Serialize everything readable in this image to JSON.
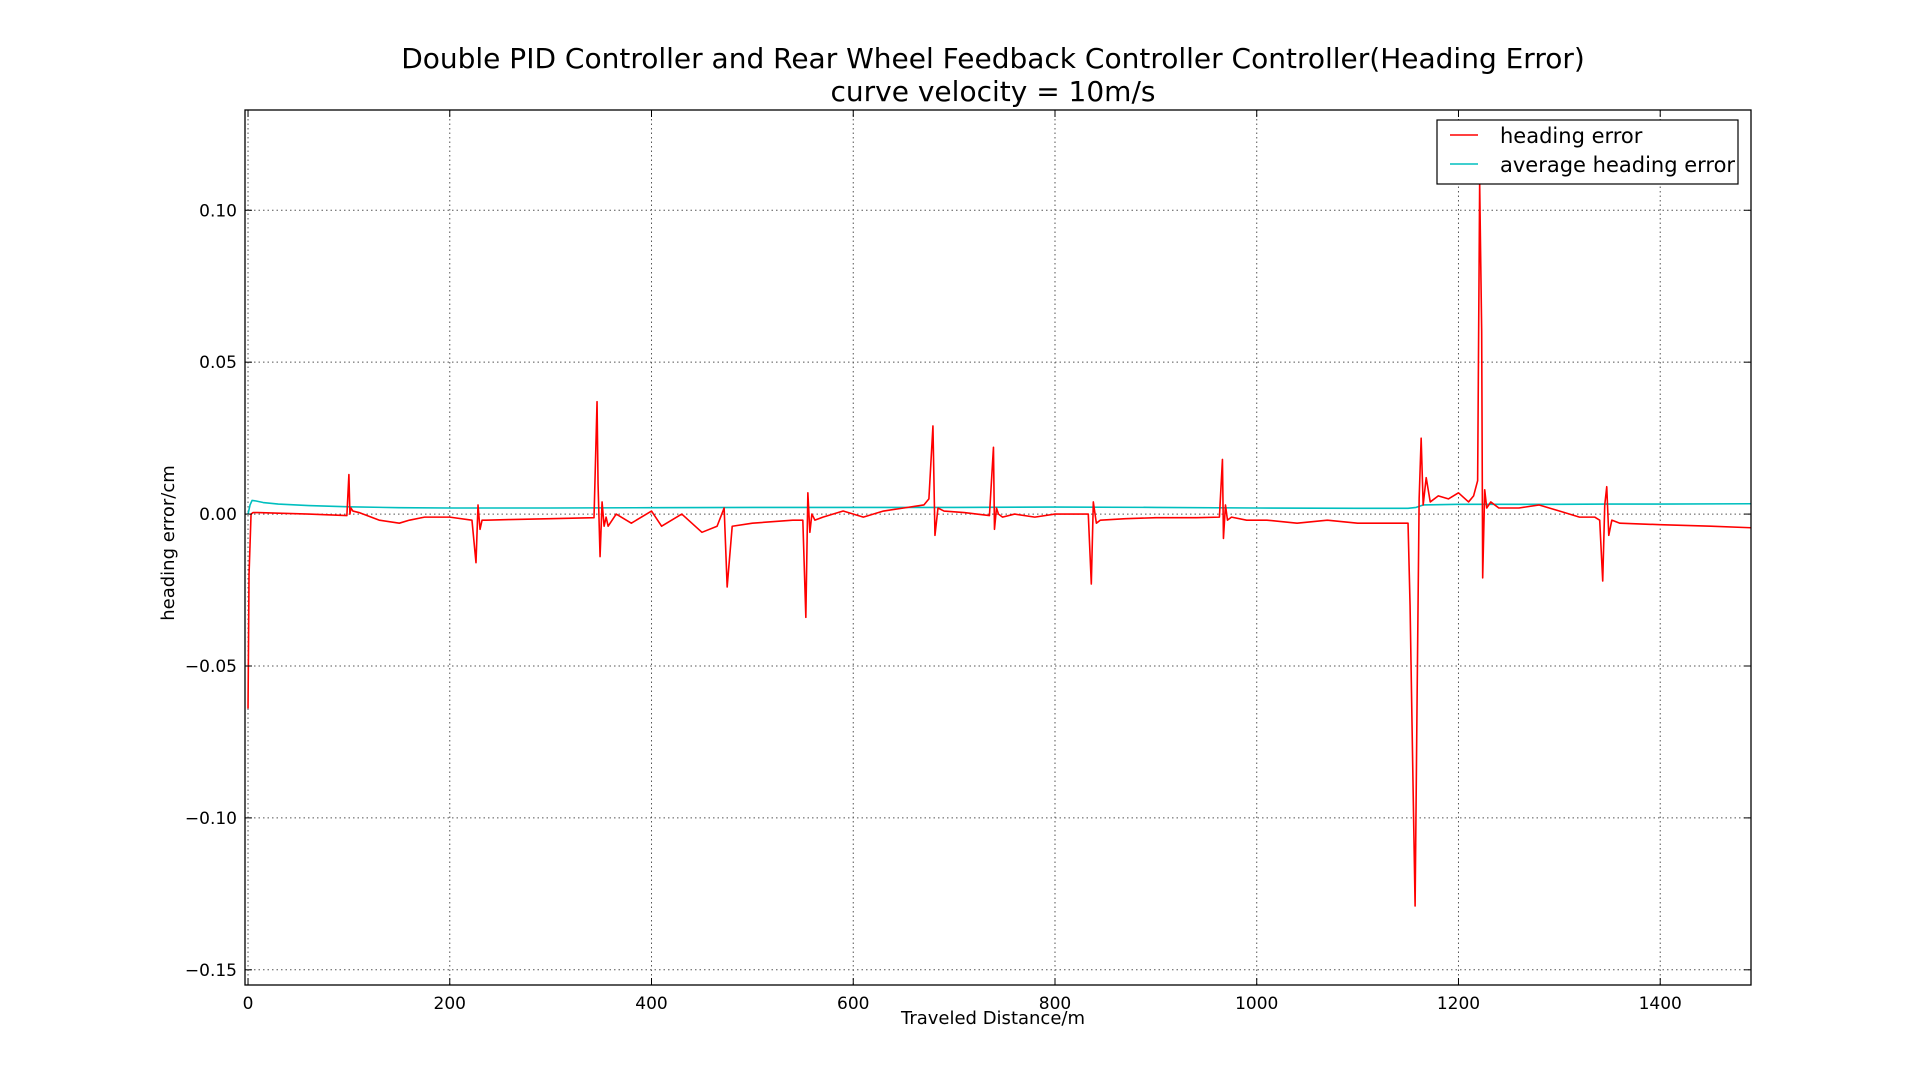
{
  "chart_data": {
    "type": "line",
    "title": "Double PID Controller and Rear Wheel Feedback Controller Controller(Heading Error)",
    "subtitle": "curve velocity = 10m/s",
    "xlabel": "Traveled Distance/m",
    "ylabel": "heading error/cm",
    "xlim": [
      -3,
      1490
    ],
    "ylim": [
      -0.155,
      0.133
    ],
    "xticks": [
      0,
      200,
      400,
      600,
      800,
      1000,
      1200,
      1400
    ],
    "xtick_labels": [
      "0",
      "200",
      "400",
      "600",
      "800",
      "1000",
      "1200",
      "1400"
    ],
    "yticks": [
      0.1,
      0.05,
      0.0,
      -0.05,
      -0.1,
      -0.15
    ],
    "ytick_labels": [
      "0.10",
      "0.05",
      "0.00",
      "−0.05",
      "−0.10",
      "−0.15"
    ],
    "grid": true,
    "legend_position": "top-right",
    "series": [
      {
        "name": "heading error",
        "color": "#ff0000",
        "x": [
          0,
          1,
          3,
          5,
          10,
          30,
          60,
          98,
          100,
          101,
          102,
          104,
          110,
          130,
          150,
          160,
          175,
          200,
          222,
          226,
          228,
          230,
          232,
          236,
          260,
          300,
          343,
          346,
          347,
          349,
          351,
          353,
          355,
          357,
          365,
          380,
          400,
          410,
          430,
          450,
          465,
          472,
          475,
          480,
          500,
          540,
          550,
          553,
          555,
          557,
          559,
          562,
          570,
          590,
          610,
          630,
          650,
          670,
          675,
          679,
          681,
          684,
          690,
          710,
          735,
          739,
          740,
          742,
          744,
          748,
          760,
          780,
          800,
          820,
          833,
          836,
          838,
          841,
          845,
          870,
          900,
          940,
          963,
          966,
          967,
          969,
          971,
          975,
          990,
          1010,
          1040,
          1070,
          1100,
          1130,
          1150,
          1152,
          1155,
          1157,
          1159,
          1161,
          1163,
          1165,
          1168,
          1172,
          1180,
          1190,
          1200,
          1210,
          1215,
          1219,
          1221,
          1223,
          1224,
          1226,
          1228,
          1232,
          1240,
          1260,
          1280,
          1300,
          1320,
          1335,
          1340,
          1343,
          1345,
          1347,
          1349,
          1352,
          1360,
          1400,
          1450,
          1490
        ],
        "y": [
          -0.064,
          -0.02,
          0.0,
          0.0005,
          0.0005,
          0.0003,
          0.0,
          -0.0005,
          0.013,
          0.0,
          0.002,
          0.001,
          0.0005,
          -0.002,
          -0.003,
          -0.002,
          -0.001,
          -0.001,
          -0.002,
          -0.016,
          0.003,
          -0.005,
          -0.002,
          -0.002,
          -0.0018,
          -0.0015,
          -0.0012,
          0.037,
          0.01,
          -0.014,
          0.004,
          -0.004,
          -0.001,
          -0.004,
          0.0,
          -0.003,
          0.001,
          -0.004,
          0.0,
          -0.006,
          -0.004,
          0.002,
          -0.024,
          -0.004,
          -0.003,
          -0.002,
          -0.002,
          -0.034,
          0.007,
          -0.006,
          0.0,
          -0.002,
          -0.001,
          0.001,
          -0.001,
          0.001,
          0.002,
          0.003,
          0.005,
          0.029,
          -0.007,
          0.002,
          0.001,
          0.0005,
          -0.0005,
          0.022,
          -0.005,
          0.002,
          0.0,
          -0.001,
          0.0,
          -0.001,
          0.0,
          0.0,
          0.0,
          -0.023,
          0.004,
          -0.003,
          -0.002,
          -0.0015,
          -0.0012,
          -0.0012,
          -0.001,
          0.018,
          -0.008,
          0.003,
          -0.002,
          -0.001,
          -0.002,
          -0.002,
          -0.003,
          -0.002,
          -0.003,
          -0.003,
          -0.003,
          -0.03,
          -0.09,
          -0.129,
          -0.06,
          0.005,
          0.025,
          0.003,
          0.012,
          0.004,
          0.006,
          0.005,
          0.007,
          0.004,
          0.006,
          0.011,
          0.109,
          0.06,
          -0.021,
          0.008,
          0.002,
          0.004,
          0.002,
          0.002,
          0.003,
          0.001,
          -0.001,
          -0.001,
          -0.002,
          -0.022,
          0.003,
          0.009,
          -0.007,
          -0.002,
          -0.003,
          -0.0035,
          -0.004,
          -0.0045
        ]
      },
      {
        "name": "average heading error",
        "color": "#00bfbf",
        "x": [
          0,
          2,
          4,
          8,
          15,
          30,
          60,
          100,
          150,
          200,
          300,
          400,
          500,
          600,
          700,
          800,
          900,
          1000,
          1100,
          1150,
          1158,
          1165,
          1200,
          1250,
          1300,
          1350,
          1400,
          1490
        ],
        "y": [
          0.0,
          0.003,
          0.0045,
          0.0043,
          0.0038,
          0.0033,
          0.0028,
          0.0024,
          0.0021,
          0.002,
          0.002,
          0.0021,
          0.0022,
          0.0022,
          0.0022,
          0.0023,
          0.0022,
          0.002,
          0.0019,
          0.0019,
          0.0022,
          0.003,
          0.0032,
          0.0032,
          0.0032,
          0.0033,
          0.0033,
          0.0034
        ]
      }
    ]
  }
}
